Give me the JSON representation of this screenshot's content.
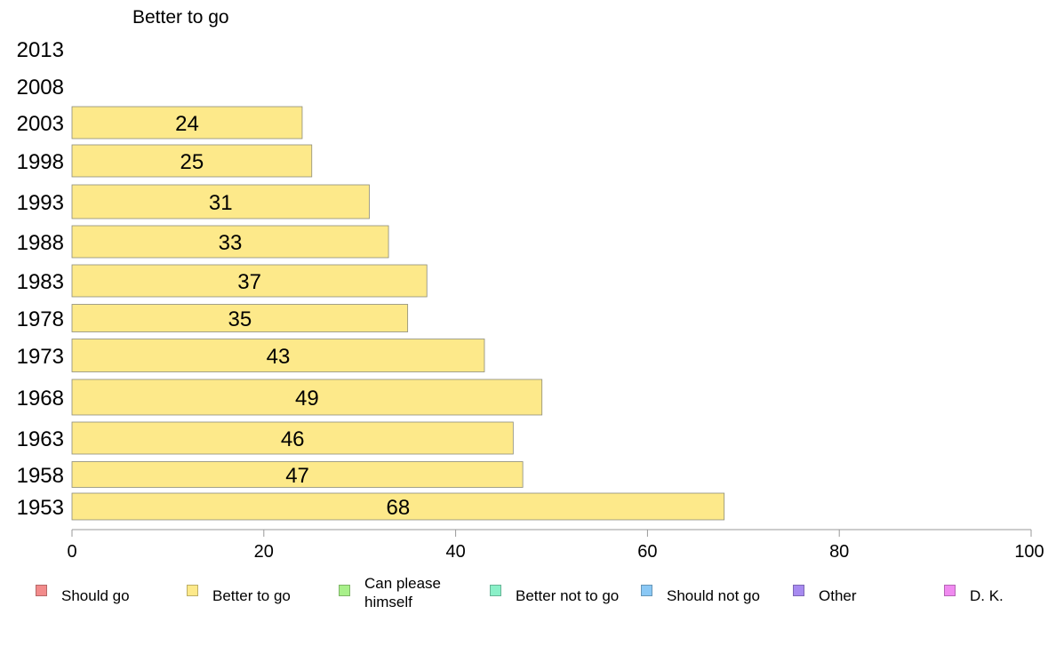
{
  "chart_data": {
    "type": "bar",
    "orientation": "horizontal",
    "title": "Better to go",
    "categories": [
      "2013",
      "2008",
      "2003",
      "1998",
      "1993",
      "1988",
      "1983",
      "1978",
      "1973",
      "1968",
      "1963",
      "1958",
      "1953"
    ],
    "series": [
      {
        "name": "Better to go",
        "color": "#fde98a",
        "values": [
          null,
          null,
          24,
          25,
          31,
          33,
          37,
          35,
          43,
          49,
          46,
          47,
          68
        ],
        "data_labels": [
          "",
          "",
          "24",
          "25",
          "31",
          "33",
          "37",
          "35",
          "43",
          "49",
          "46",
          "47",
          "68"
        ]
      }
    ],
    "xlim": [
      0,
      100
    ],
    "x_ticks": [
      "0",
      "20",
      "40",
      "60",
      "80",
      "100"
    ],
    "grid": false,
    "legend_position": "bottom",
    "legend": [
      {
        "label": "Should go",
        "color": "#f28b8b"
      },
      {
        "label": "Better to go",
        "color": "#fde98a"
      },
      {
        "label": "Can please himself",
        "color": "#a8f08a"
      },
      {
        "label": "Better not to go",
        "color": "#8af0c8"
      },
      {
        "label": "Should not go",
        "color": "#8ac8f5"
      },
      {
        "label": "Other",
        "color": "#a78af0"
      },
      {
        "label": "D. K.",
        "color": "#f08af0"
      }
    ]
  }
}
